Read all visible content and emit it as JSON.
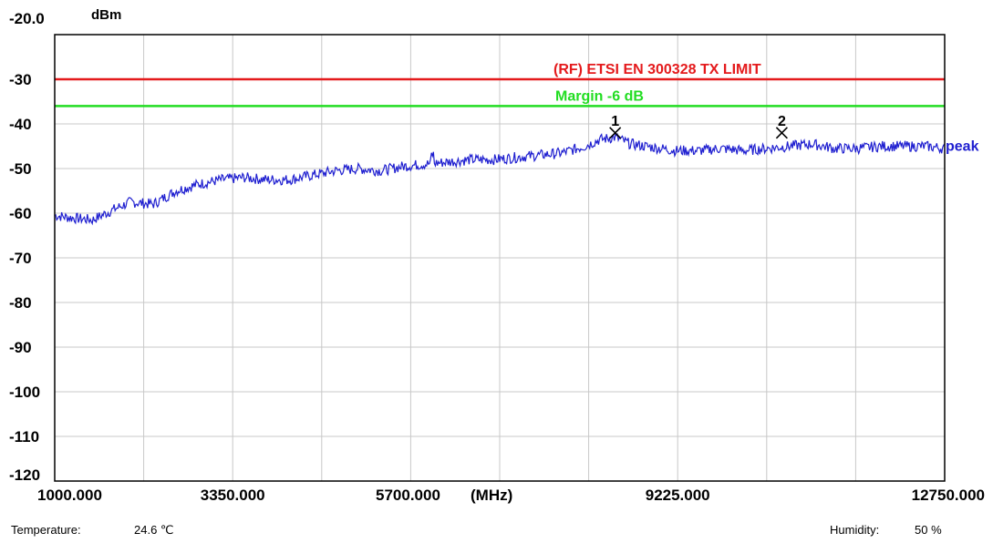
{
  "chart_data": {
    "type": "line",
    "y_unit": "dBm",
    "x_unit": "(MHz)",
    "xlim": [
      1000,
      12750
    ],
    "ylim": [
      -120,
      -20
    ],
    "y_ticks": [
      "-20.0",
      "-30",
      "-40",
      "-50",
      "-60",
      "-70",
      "-80",
      "-90",
      "-100",
      "-110",
      "-120"
    ],
    "y_tick_values": [
      -20,
      -30,
      -40,
      -50,
      -60,
      -70,
      -80,
      -90,
      -100,
      -110,
      -120
    ],
    "x_ticks": [
      "1000.000",
      "3350.000",
      "5700.000",
      "9225.000",
      "12750.000"
    ],
    "x_tick_values": [
      1000,
      3350,
      5700,
      9225,
      12750
    ],
    "grid": true,
    "colors": {
      "limit": "#e41a1c",
      "margin": "#22dd22",
      "trace": "#1f1fd0",
      "grid": "#c8c8c8",
      "frame": "#000000"
    },
    "limit_lines": [
      {
        "label": "(RF) ETSI EN 300328  TX LIMIT",
        "value": -30,
        "color": "#e41a1c"
      },
      {
        "label": "Margin -6 dB",
        "value": -36,
        "color": "#22dd22"
      }
    ],
    "series": [
      {
        "name": "peak",
        "color": "#1f1fd0",
        "x": [
          1000,
          1200,
          1500,
          1800,
          2000,
          2300,
          2600,
          2900,
          3200,
          3500,
          3800,
          4100,
          4400,
          4700,
          5000,
          5300,
          5600,
          5900,
          6200,
          6500,
          6800,
          7100,
          7400,
          7700,
          8000,
          8200,
          8400,
          8600,
          8800,
          9000,
          9200,
          9500,
          9800,
          10100,
          10400,
          10700,
          11000,
          11300,
          11600,
          11900,
          12200,
          12500,
          12750
        ],
        "values": [
          -60.5,
          -61.0,
          -61.5,
          -59.0,
          -57.5,
          -58.0,
          -55.0,
          -53.5,
          -52.5,
          -52.0,
          -52.5,
          -52.5,
          -51.5,
          -50.5,
          -50.0,
          -50.5,
          -49.5,
          -49.0,
          -48.5,
          -48.0,
          -48.0,
          -47.5,
          -47.0,
          -46.5,
          -45.0,
          -43.5,
          -43.0,
          -44.5,
          -45.0,
          -45.5,
          -46.0,
          -46.0,
          -45.5,
          -46.0,
          -45.5,
          -45.0,
          -44.5,
          -45.5,
          -45.5,
          -45.0,
          -45.0,
          -45.0,
          -45.5
        ]
      }
    ],
    "markers": [
      {
        "label": "1",
        "x": 8400,
        "value": -42.0
      },
      {
        "label": "2",
        "x": 10600,
        "value": -42.0
      }
    ]
  },
  "footer": {
    "temperature_label": "Temperature:",
    "temperature_value": "24.6 ℃",
    "humidity_label": "Humidity:",
    "humidity_value": "50 %"
  }
}
